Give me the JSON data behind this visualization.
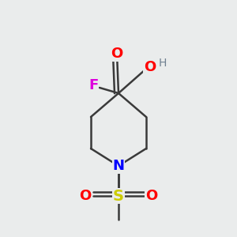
{
  "bg_color": "#eaecec",
  "bond_color": "#3a3a3a",
  "atom_colors": {
    "O": "#ff0000",
    "F": "#dd00dd",
    "N": "#0000ff",
    "S": "#cccc00",
    "H": "#708090",
    "C": "#3a3a3a"
  }
}
